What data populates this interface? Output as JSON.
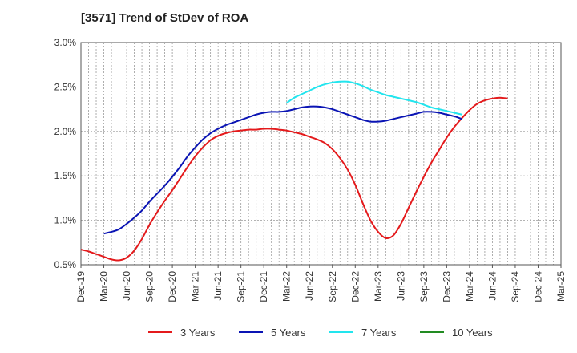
{
  "chart_data": {
    "type": "line",
    "title": "[3571]  Trend of StDev of ROA",
    "xlabel": "",
    "ylabel": "",
    "ylim": [
      0.5,
      3.0
    ],
    "y_ticks": [
      "0.5%",
      "1.0%",
      "1.5%",
      "2.0%",
      "2.5%",
      "3.0%"
    ],
    "x_ticks": [
      "Dec-19",
      "Mar-20",
      "Jun-20",
      "Sep-20",
      "Dec-20",
      "Mar-21",
      "Jun-21",
      "Sep-21",
      "Dec-21",
      "Mar-22",
      "Jun-22",
      "Sep-22",
      "Dec-22",
      "Mar-23",
      "Jun-23",
      "Sep-23",
      "Dec-23",
      "Mar-24",
      "Jun-24",
      "Sep-24",
      "Dec-24",
      "Mar-25"
    ],
    "grid": true,
    "legend_position": "bottom",
    "series": [
      {
        "name": "3 Years",
        "color": "#e41a1c",
        "points": [
          [
            "Dec-19",
            0.67
          ],
          [
            "Jan-20",
            0.65
          ],
          [
            "Feb-20",
            0.62
          ],
          [
            "Mar-20",
            0.59
          ],
          [
            "Apr-20",
            0.56
          ],
          [
            "May-20",
            0.55
          ],
          [
            "Jun-20",
            0.58
          ],
          [
            "Jul-20",
            0.66
          ],
          [
            "Aug-20",
            0.79
          ],
          [
            "Sep-20",
            0.95
          ],
          [
            "Oct-20",
            1.09
          ],
          [
            "Nov-20",
            1.22
          ],
          [
            "Dec-20",
            1.34
          ],
          [
            "Jan-21",
            1.47
          ],
          [
            "Feb-21",
            1.6
          ],
          [
            "Mar-21",
            1.72
          ],
          [
            "Apr-21",
            1.82
          ],
          [
            "May-21",
            1.9
          ],
          [
            "Jun-21",
            1.95
          ],
          [
            "Jul-21",
            1.98
          ],
          [
            "Aug-21",
            2.0
          ],
          [
            "Sep-21",
            2.01
          ],
          [
            "Oct-21",
            2.02
          ],
          [
            "Nov-21",
            2.02
          ],
          [
            "Dec-21",
            2.03
          ],
          [
            "Jan-22",
            2.03
          ],
          [
            "Feb-22",
            2.02
          ],
          [
            "Mar-22",
            2.01
          ],
          [
            "Apr-22",
            1.99
          ],
          [
            "May-22",
            1.97
          ],
          [
            "Jun-22",
            1.94
          ],
          [
            "Jul-22",
            1.91
          ],
          [
            "Aug-22",
            1.87
          ],
          [
            "Sep-22",
            1.8
          ],
          [
            "Oct-22",
            1.7
          ],
          [
            "Nov-22",
            1.57
          ],
          [
            "Dec-22",
            1.4
          ],
          [
            "Jan-23",
            1.19
          ],
          [
            "Feb-23",
            1.0
          ],
          [
            "Mar-23",
            0.87
          ],
          [
            "Apr-23",
            0.8
          ],
          [
            "May-23",
            0.83
          ],
          [
            "Jun-23",
            0.96
          ],
          [
            "Jul-23",
            1.14
          ],
          [
            "Aug-23",
            1.32
          ],
          [
            "Sep-23",
            1.49
          ],
          [
            "Oct-23",
            1.65
          ],
          [
            "Nov-23",
            1.79
          ],
          [
            "Dec-23",
            1.93
          ],
          [
            "Jan-24",
            2.05
          ],
          [
            "Feb-24",
            2.15
          ],
          [
            "Mar-24",
            2.24
          ],
          [
            "Apr-24",
            2.31
          ],
          [
            "May-24",
            2.35
          ],
          [
            "Jun-24",
            2.37
          ],
          [
            "Jul-24",
            2.38
          ],
          [
            "Aug-24",
            2.37
          ]
        ]
      },
      {
        "name": "5 Years",
        "color": "#0a14b4",
        "points": [
          [
            "Mar-20",
            0.85
          ],
          [
            "Apr-20",
            0.87
          ],
          [
            "May-20",
            0.9
          ],
          [
            "Jun-20",
            0.96
          ],
          [
            "Jul-20",
            1.03
          ],
          [
            "Aug-20",
            1.11
          ],
          [
            "Sep-20",
            1.21
          ],
          [
            "Oct-20",
            1.3
          ],
          [
            "Nov-20",
            1.39
          ],
          [
            "Dec-20",
            1.49
          ],
          [
            "Jan-21",
            1.6
          ],
          [
            "Feb-21",
            1.72
          ],
          [
            "Mar-21",
            1.82
          ],
          [
            "Apr-21",
            1.91
          ],
          [
            "May-21",
            1.98
          ],
          [
            "Jun-21",
            2.03
          ],
          [
            "Jul-21",
            2.07
          ],
          [
            "Aug-21",
            2.1
          ],
          [
            "Sep-21",
            2.13
          ],
          [
            "Oct-21",
            2.16
          ],
          [
            "Nov-21",
            2.19
          ],
          [
            "Dec-21",
            2.21
          ],
          [
            "Jan-22",
            2.22
          ],
          [
            "Feb-22",
            2.22
          ],
          [
            "Mar-22",
            2.23
          ],
          [
            "Apr-22",
            2.25
          ],
          [
            "May-22",
            2.27
          ],
          [
            "Jun-22",
            2.28
          ],
          [
            "Jul-22",
            2.28
          ],
          [
            "Aug-22",
            2.27
          ],
          [
            "Sep-22",
            2.25
          ],
          [
            "Oct-22",
            2.22
          ],
          [
            "Nov-22",
            2.19
          ],
          [
            "Dec-22",
            2.16
          ],
          [
            "Jan-23",
            2.13
          ],
          [
            "Feb-23",
            2.11
          ],
          [
            "Mar-23",
            2.11
          ],
          [
            "Apr-23",
            2.12
          ],
          [
            "May-23",
            2.14
          ],
          [
            "Jun-23",
            2.16
          ],
          [
            "Jul-23",
            2.18
          ],
          [
            "Aug-23",
            2.2
          ],
          [
            "Sep-23",
            2.22
          ],
          [
            "Oct-23",
            2.22
          ],
          [
            "Nov-23",
            2.21
          ],
          [
            "Dec-23",
            2.19
          ],
          [
            "Jan-24",
            2.17
          ],
          [
            "Feb-24",
            2.14
          ]
        ]
      },
      {
        "name": "7 Years",
        "color": "#22e5ee",
        "points": [
          [
            "Mar-22",
            2.32
          ],
          [
            "Apr-22",
            2.38
          ],
          [
            "May-22",
            2.42
          ],
          [
            "Jun-22",
            2.46
          ],
          [
            "Jul-22",
            2.5
          ],
          [
            "Aug-22",
            2.53
          ],
          [
            "Sep-22",
            2.55
          ],
          [
            "Oct-22",
            2.56
          ],
          [
            "Nov-22",
            2.56
          ],
          [
            "Dec-22",
            2.54
          ],
          [
            "Jan-23",
            2.51
          ],
          [
            "Feb-23",
            2.47
          ],
          [
            "Mar-23",
            2.44
          ],
          [
            "Apr-23",
            2.41
          ],
          [
            "May-23",
            2.39
          ],
          [
            "Jun-23",
            2.37
          ],
          [
            "Jul-23",
            2.35
          ],
          [
            "Aug-23",
            2.33
          ],
          [
            "Sep-23",
            2.3
          ],
          [
            "Oct-23",
            2.27
          ],
          [
            "Nov-23",
            2.25
          ],
          [
            "Dec-23",
            2.23
          ],
          [
            "Jan-24",
            2.21
          ],
          [
            "Feb-24",
            2.19
          ]
        ]
      },
      {
        "name": "10 Years",
        "color": "#228b22",
        "points": []
      }
    ]
  }
}
